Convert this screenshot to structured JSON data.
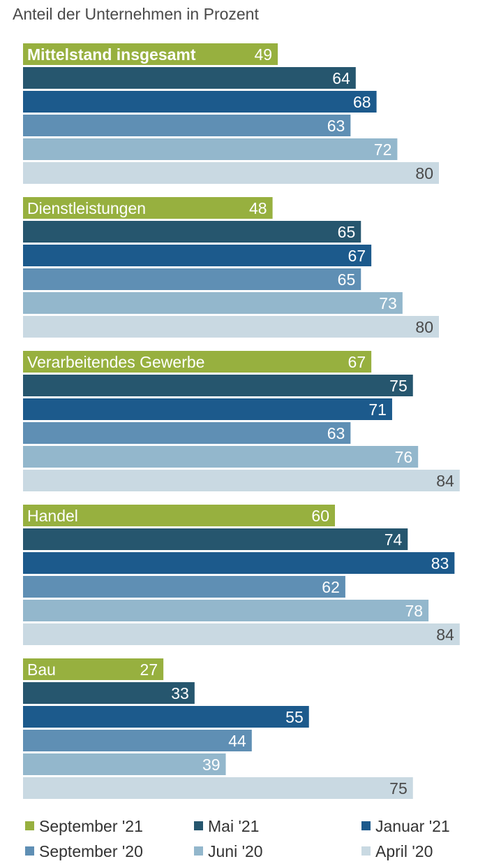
{
  "chart_data": {
    "type": "bar",
    "orientation": "horizontal",
    "title": "",
    "subtitle": "Anteil der Unternehmen in Prozent",
    "xlabel": "",
    "ylabel": "",
    "xlim": [
      0,
      84
    ],
    "grid": false,
    "legend_position": "bottom",
    "categories": [
      "Mittelstand insgesamt",
      "Dienstleistungen",
      "Verarbeitendes Gewerbe",
      "Handel",
      "Bau"
    ],
    "series": [
      {
        "name": "September '21",
        "color": "#97b03f",
        "values": [
          49,
          48,
          67,
          60,
          27
        ]
      },
      {
        "name": "Mai '21",
        "color": "#26566e",
        "values": [
          64,
          65,
          75,
          74,
          33
        ]
      },
      {
        "name": "Januar '21",
        "color": "#1c5a8c",
        "values": [
          68,
          67,
          71,
          83,
          55
        ]
      },
      {
        "name": "September '20",
        "color": "#5f8fb4",
        "values": [
          63,
          65,
          63,
          62,
          44
        ]
      },
      {
        "name": "Juni '20",
        "color": "#93b7cc",
        "values": [
          72,
          73,
          76,
          78,
          39
        ]
      },
      {
        "name": "April '20",
        "color": "#c9d9e2",
        "values": [
          80,
          80,
          84,
          84,
          75
        ]
      }
    ]
  }
}
